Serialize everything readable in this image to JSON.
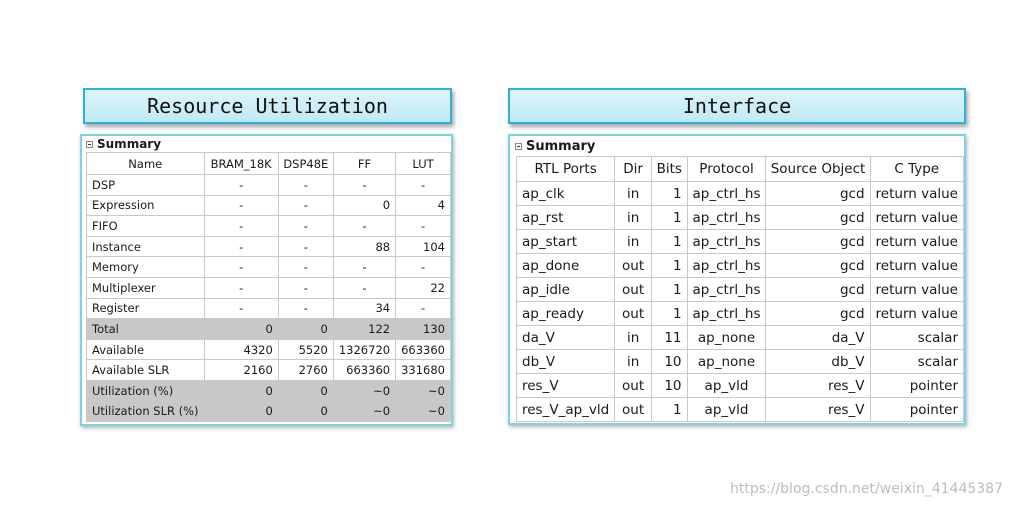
{
  "resource": {
    "title": "Resource Utilization",
    "summary_label": "Summary",
    "columns": [
      "Name",
      "BRAM_18K",
      "DSP48E",
      "FF",
      "LUT"
    ],
    "rows": [
      {
        "name": "DSP",
        "bram": "-",
        "dsp": "-",
        "ff": "-",
        "lut": "-",
        "shaded": false
      },
      {
        "name": "Expression",
        "bram": "-",
        "dsp": "-",
        "ff": "0",
        "lut": "4",
        "shaded": false
      },
      {
        "name": "FIFO",
        "bram": "-",
        "dsp": "-",
        "ff": "-",
        "lut": "-",
        "shaded": false
      },
      {
        "name": "Instance",
        "bram": "-",
        "dsp": "-",
        "ff": "88",
        "lut": "104",
        "shaded": false
      },
      {
        "name": "Memory",
        "bram": "-",
        "dsp": "-",
        "ff": "-",
        "lut": "-",
        "shaded": false
      },
      {
        "name": "Multiplexer",
        "bram": "-",
        "dsp": "-",
        "ff": "-",
        "lut": "22",
        "shaded": false
      },
      {
        "name": "Register",
        "bram": "-",
        "dsp": "-",
        "ff": "34",
        "lut": "-",
        "shaded": false
      },
      {
        "name": "Total",
        "bram": "0",
        "dsp": "0",
        "ff": "122",
        "lut": "130",
        "shaded": true
      },
      {
        "name": "Available",
        "bram": "4320",
        "dsp": "5520",
        "ff": "1326720",
        "lut": "663360",
        "shaded": false
      },
      {
        "name": "Available SLR",
        "bram": "2160",
        "dsp": "2760",
        "ff": "663360",
        "lut": "331680",
        "shaded": false
      },
      {
        "name": "Utilization (%)",
        "bram": "0",
        "dsp": "0",
        "ff": "~0",
        "lut": "~0",
        "shaded": true
      },
      {
        "name": "Utilization SLR (%)",
        "bram": "0",
        "dsp": "0",
        "ff": "~0",
        "lut": "~0",
        "shaded": true
      }
    ]
  },
  "interface": {
    "title": "Interface",
    "summary_label": "Summary",
    "columns": [
      "RTL Ports",
      "Dir",
      "Bits",
      "Protocol",
      "Source Object",
      "C Type"
    ],
    "rows": [
      {
        "port": "ap_clk",
        "dir": "in",
        "bits": "1",
        "protocol": "ap_ctrl_hs",
        "source": "gcd",
        "ctype": "return value"
      },
      {
        "port": "ap_rst",
        "dir": "in",
        "bits": "1",
        "protocol": "ap_ctrl_hs",
        "source": "gcd",
        "ctype": "return value"
      },
      {
        "port": "ap_start",
        "dir": "in",
        "bits": "1",
        "protocol": "ap_ctrl_hs",
        "source": "gcd",
        "ctype": "return value"
      },
      {
        "port": "ap_done",
        "dir": "out",
        "bits": "1",
        "protocol": "ap_ctrl_hs",
        "source": "gcd",
        "ctype": "return value"
      },
      {
        "port": "ap_idle",
        "dir": "out",
        "bits": "1",
        "protocol": "ap_ctrl_hs",
        "source": "gcd",
        "ctype": "return value"
      },
      {
        "port": "ap_ready",
        "dir": "out",
        "bits": "1",
        "protocol": "ap_ctrl_hs",
        "source": "gcd",
        "ctype": "return value"
      },
      {
        "port": "da_V",
        "dir": "in",
        "bits": "11",
        "protocol": "ap_none",
        "source": "da_V",
        "ctype": "scalar"
      },
      {
        "port": "db_V",
        "dir": "in",
        "bits": "10",
        "protocol": "ap_none",
        "source": "db_V",
        "ctype": "scalar"
      },
      {
        "port": "res_V",
        "dir": "out",
        "bits": "10",
        "protocol": "ap_vld",
        "source": "res_V",
        "ctype": "pointer"
      },
      {
        "port": "res_V_ap_vld",
        "dir": "out",
        "bits": "1",
        "protocol": "ap_vld",
        "source": "res_V",
        "ctype": "pointer"
      }
    ]
  },
  "watermark": "https://blog.csdn.net/weixin_41445387"
}
